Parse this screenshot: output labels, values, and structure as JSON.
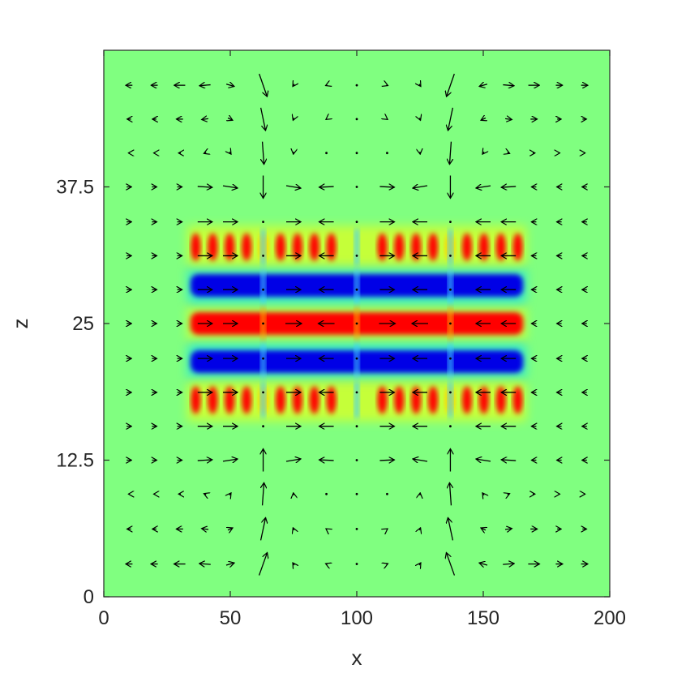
{
  "chart_data": {
    "type": "heatmap",
    "subtype": "field-with-vector-quiver",
    "title": "",
    "xlabel": "x",
    "ylabel": "z",
    "xlim": [
      0,
      200
    ],
    "ylim": [
      0,
      50
    ],
    "xticks": [
      0,
      50,
      100,
      150,
      200
    ],
    "xtick_labels": [
      "0",
      "50",
      "100",
      "150",
      "200"
    ],
    "yticks": [
      0,
      12.5,
      25,
      37.5
    ],
    "ytick_labels": [
      "0",
      "12.5",
      "25",
      "37.5"
    ],
    "grid": false,
    "colormap": "jet",
    "background_color": "#80ff80",
    "colors": {
      "positive": "#ff0000",
      "negative": "#0000e6",
      "mid": "#80ff80",
      "arrows": "#000000"
    },
    "field_bands": [
      {
        "name": "center-band",
        "z_center": 25,
        "sign": "positive",
        "x_range": [
          33,
          167
        ],
        "striped": false
      },
      {
        "name": "lower-negative-band",
        "z_center": 21.5,
        "sign": "negative",
        "x_range": [
          33,
          167
        ],
        "striped": false
      },
      {
        "name": "upper-negative-band",
        "z_center": 28.5,
        "sign": "negative",
        "x_range": [
          33,
          167
        ],
        "striped": false
      },
      {
        "name": "lower-striped-band",
        "z_center": 18,
        "sign": "positive",
        "x_range": [
          33,
          167
        ],
        "striped": true
      },
      {
        "name": "upper-striped-band",
        "z_center": 32,
        "sign": "positive",
        "x_range": [
          33,
          167
        ],
        "striped": true
      }
    ],
    "field_gaps_x": [
      63,
      100,
      137
    ],
    "quiver": {
      "x_positions": [
        10,
        20,
        30,
        40,
        50,
        63,
        75,
        88,
        100,
        112,
        125,
        137,
        150,
        160,
        170,
        180,
        190
      ],
      "z_positions": [
        3,
        6.2,
        9.4,
        12.5,
        15.6,
        18.7,
        21.8,
        25,
        28.1,
        31.2,
        34.3,
        37.5,
        40.6,
        43.7,
        46.8
      ],
      "description": "velocity arrows diverge from x=100 along the mid-plane and circulate vertically near x=63 and x=137"
    }
  }
}
